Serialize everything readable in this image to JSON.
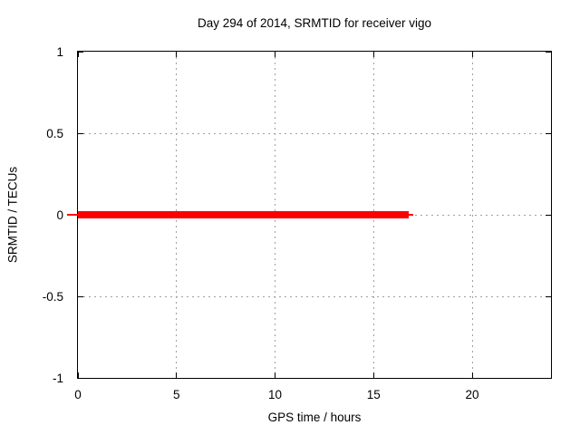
{
  "chart_data": {
    "type": "line",
    "title": "Day 294 of 2014, SRMTID for receiver vigo",
    "xlabel": "GPS time / hours",
    "ylabel": "SRMTID / TECUs",
    "xlim": [
      0,
      24
    ],
    "ylim": [
      -1,
      1
    ],
    "xticks": {
      "values": [
        0,
        5,
        10,
        15,
        20
      ],
      "labels": [
        "0",
        "5",
        "10",
        "15",
        "20"
      ]
    },
    "yticks": {
      "values": [
        1,
        0.5,
        0,
        -0.5,
        -1
      ],
      "labels": [
        "1",
        "0.5",
        "0",
        "-0.5",
        "-1"
      ]
    },
    "grid": "dashed, at every major tick",
    "legend_position": "none",
    "series": [
      {
        "name": "SRMTID",
        "color": "#ff0000",
        "x": [
          0,
          16.8
        ],
        "y": [
          0,
          0
        ],
        "description": "constant zero value from 0 to about 16.8 GPS hours; no data after ~17 h"
      }
    ],
    "render_segments": [
      {
        "x0": -0.55,
        "x1": 0.0,
        "y": 0,
        "thickness_px": 2
      },
      {
        "x0": 0.0,
        "x1": 16.8,
        "y": 0,
        "thickness_px": 8
      },
      {
        "x0": 16.8,
        "x1": 17.0,
        "y": 0,
        "thickness_px": 2
      }
    ]
  },
  "colors": {
    "background": "#ffffff",
    "border": "#000000",
    "grid": "#a0a0a0",
    "text": "#000000",
    "series": "#ff0000"
  }
}
